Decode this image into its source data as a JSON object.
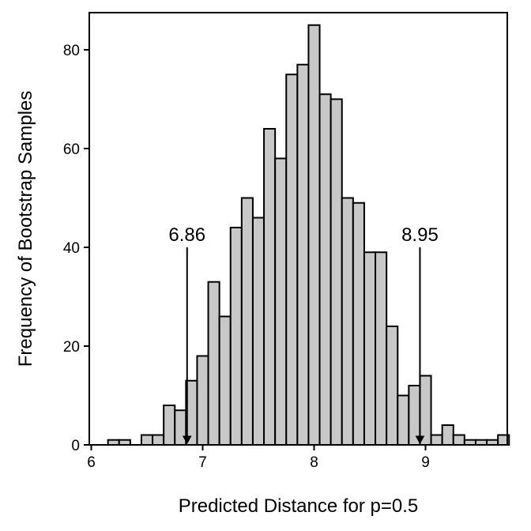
{
  "chart_data": {
    "type": "bar",
    "xlabel": "Predicted Distance for p=0.5",
    "ylabel": "Frequency of Bootstrap Samples",
    "xlim": [
      6,
      9.9
    ],
    "ylim": [
      0,
      88
    ],
    "xticks": [
      6,
      7,
      8,
      9
    ],
    "yticks": [
      0,
      20,
      40,
      60,
      80
    ],
    "grid": false,
    "bin_width": 0.1,
    "bins": [
      {
        "x": 6.2,
        "count": 1
      },
      {
        "x": 6.3,
        "count": 1
      },
      {
        "x": 6.4,
        "count": 0
      },
      {
        "x": 6.5,
        "count": 2
      },
      {
        "x": 6.6,
        "count": 2
      },
      {
        "x": 6.7,
        "count": 8
      },
      {
        "x": 6.8,
        "count": 7
      },
      {
        "x": 6.9,
        "count": 13
      },
      {
        "x": 7.0,
        "count": 18
      },
      {
        "x": 7.1,
        "count": 33
      },
      {
        "x": 7.2,
        "count": 26
      },
      {
        "x": 7.3,
        "count": 44
      },
      {
        "x": 7.4,
        "count": 50
      },
      {
        "x": 7.5,
        "count": 46
      },
      {
        "x": 7.6,
        "count": 64
      },
      {
        "x": 7.7,
        "count": 58
      },
      {
        "x": 7.8,
        "count": 75
      },
      {
        "x": 7.9,
        "count": 77
      },
      {
        "x": 8.0,
        "count": 85
      },
      {
        "x": 8.1,
        "count": 71
      },
      {
        "x": 8.2,
        "count": 70
      },
      {
        "x": 8.3,
        "count": 50
      },
      {
        "x": 8.4,
        "count": 49
      },
      {
        "x": 8.5,
        "count": 39
      },
      {
        "x": 8.6,
        "count": 39
      },
      {
        "x": 8.7,
        "count": 24
      },
      {
        "x": 8.8,
        "count": 10
      },
      {
        "x": 8.9,
        "count": 12
      },
      {
        "x": 9.0,
        "count": 14
      },
      {
        "x": 9.1,
        "count": 2
      },
      {
        "x": 9.2,
        "count": 4
      },
      {
        "x": 9.3,
        "count": 2
      },
      {
        "x": 9.4,
        "count": 1
      },
      {
        "x": 9.5,
        "count": 1
      },
      {
        "x": 9.6,
        "count": 1
      },
      {
        "x": 9.7,
        "count": 2
      }
    ],
    "annotations": [
      {
        "label": "6.86",
        "x": 6.86,
        "y_start": 40,
        "y_end": 0
      },
      {
        "label": "8.95",
        "x": 8.95,
        "y_start": 40,
        "y_end": 0
      }
    ]
  }
}
